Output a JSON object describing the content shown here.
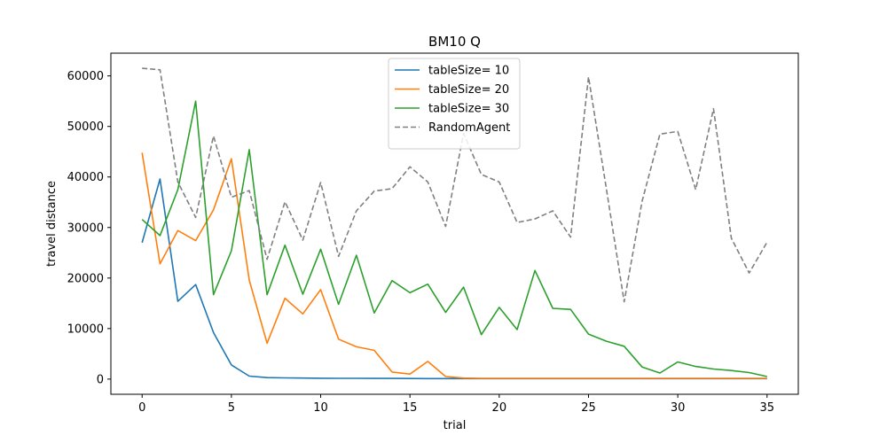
{
  "chart_data": {
    "type": "line",
    "title": "BM10  Q",
    "xlabel": "trial",
    "ylabel": "travel distance",
    "xlim": [
      -1.75,
      36.75
    ],
    "ylim": [
      -3000,
      64500
    ],
    "xticks": [
      0,
      5,
      10,
      15,
      20,
      25,
      30,
      35
    ],
    "yticks": [
      0,
      10000,
      20000,
      30000,
      40000,
      50000,
      60000
    ],
    "grid": false,
    "legend_position": "upper center",
    "x": [
      0,
      1,
      2,
      3,
      4,
      5,
      6,
      7,
      8,
      9,
      10,
      11,
      12,
      13,
      14,
      15,
      16,
      17,
      18,
      19,
      20,
      21,
      22,
      23,
      24,
      25,
      26,
      27,
      28,
      29,
      30,
      31,
      32,
      33,
      34,
      35
    ],
    "series": [
      {
        "name": "tableSize= 10",
        "color": "#1f77b4",
        "dash": "solid",
        "values": [
          27000,
          39600,
          15400,
          18700,
          9200,
          2800,
          600,
          300,
          250,
          200,
          180,
          160,
          150,
          140,
          130,
          120,
          110,
          100,
          100,
          100,
          100,
          100,
          100,
          100,
          100,
          100,
          100,
          100,
          100,
          100,
          100,
          100,
          100,
          100,
          100,
          100
        ]
      },
      {
        "name": "tableSize= 20",
        "color": "#ff7f0e",
        "dash": "solid",
        "values": [
          44800,
          22800,
          29400,
          27400,
          33500,
          43600,
          19600,
          7100,
          16000,
          12900,
          17700,
          7900,
          6400,
          5700,
          1400,
          1000,
          3500,
          500,
          200,
          150,
          150,
          150,
          150,
          150,
          150,
          150,
          150,
          150,
          150,
          150,
          150,
          150,
          150,
          150,
          150,
          150
        ]
      },
      {
        "name": "tableSize= 30",
        "color": "#2ca02c",
        "dash": "solid",
        "values": [
          31600,
          28400,
          37500,
          55000,
          16700,
          25400,
          45400,
          16700,
          26500,
          16800,
          25700,
          14800,
          24500,
          13100,
          19500,
          17100,
          18800,
          13200,
          18200,
          8800,
          14200,
          9800,
          21500,
          14000,
          13800,
          8900,
          7500,
          6500,
          2400,
          1200,
          3400,
          2500,
          2000,
          1700,
          1300,
          500
        ]
      },
      {
        "name": "RandomAgent",
        "color": "#808080",
        "dash": "dashed",
        "values": [
          61500,
          61200,
          39000,
          32000,
          48100,
          36000,
          37300,
          23700,
          35100,
          27500,
          38900,
          24300,
          33300,
          37200,
          37700,
          42000,
          39000,
          30200,
          48600,
          40500,
          39000,
          31000,
          31700,
          33300,
          28100,
          59800,
          37700,
          15300,
          35200,
          48500,
          49000,
          37500,
          53500,
          27900,
          21000,
          27100
        ]
      }
    ]
  }
}
